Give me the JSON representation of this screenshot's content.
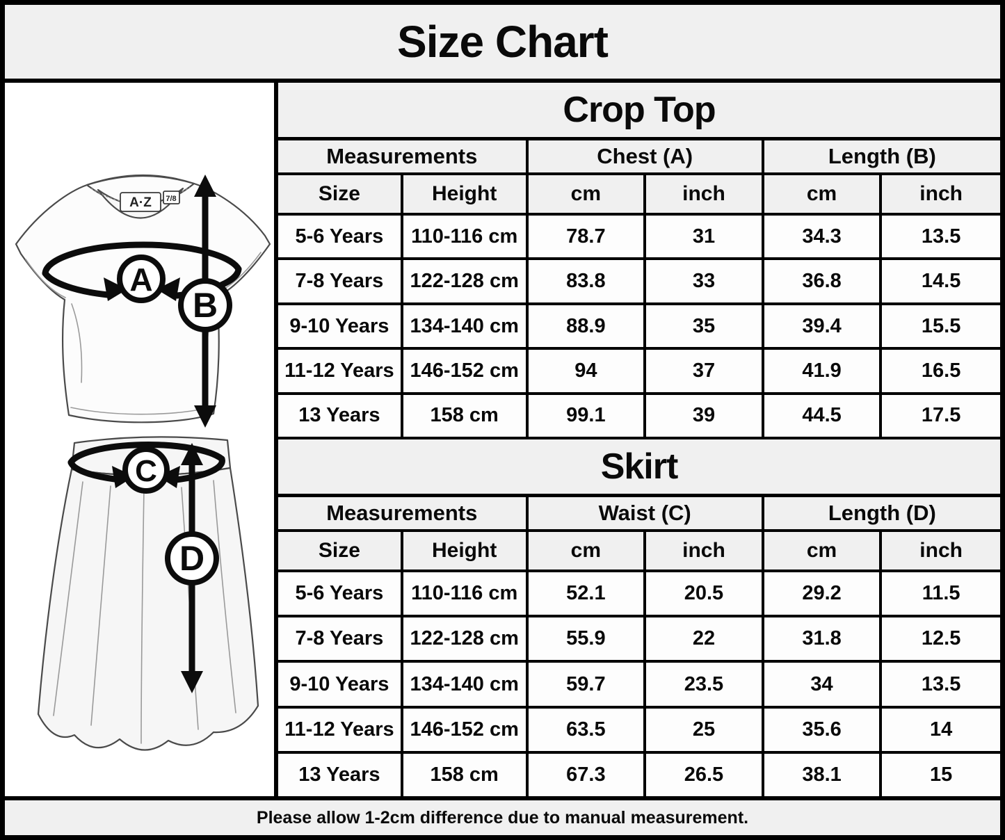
{
  "title": "Size Chart",
  "footer_note": "Please allow 1-2cm difference due to manual measurement.",
  "colors": {
    "header_bg": "#f0f0f0",
    "cell_bg": "#fdfdfd",
    "border": "#000000",
    "text": "#0a0a0a"
  },
  "illustration": {
    "chest_label": "A",
    "top_length_label": "B",
    "waist_label": "C",
    "skirt_length_label": "D",
    "brand_tag": "A·Z",
    "size_tag": "7/8"
  },
  "chart_data": [
    {
      "type": "table",
      "title": "Crop Top",
      "group_headers": [
        "Measurements",
        "Chest (A)",
        "Length (B)"
      ],
      "col_headers": [
        "Size",
        "Height",
        "cm",
        "inch",
        "cm",
        "inch"
      ],
      "rows": [
        [
          "5-6 Years",
          "110-116 cm",
          "78.7",
          "31",
          "34.3",
          "13.5"
        ],
        [
          "7-8 Years",
          "122-128 cm",
          "83.8",
          "33",
          "36.8",
          "14.5"
        ],
        [
          "9-10 Years",
          "134-140 cm",
          "88.9",
          "35",
          "39.4",
          "15.5"
        ],
        [
          "11-12 Years",
          "146-152 cm",
          "94",
          "37",
          "41.9",
          "16.5"
        ],
        [
          "13 Years",
          "158 cm",
          "99.1",
          "39",
          "44.5",
          "17.5"
        ]
      ]
    },
    {
      "type": "table",
      "title": "Skirt",
      "group_headers": [
        "Measurements",
        "Waist (C)",
        "Length (D)"
      ],
      "col_headers": [
        "Size",
        "Height",
        "cm",
        "inch",
        "cm",
        "inch"
      ],
      "rows": [
        [
          "5-6 Years",
          "110-116 cm",
          "52.1",
          "20.5",
          "29.2",
          "11.5"
        ],
        [
          "7-8 Years",
          "122-128 cm",
          "55.9",
          "22",
          "31.8",
          "12.5"
        ],
        [
          "9-10 Years",
          "134-140 cm",
          "59.7",
          "23.5",
          "34",
          "13.5"
        ],
        [
          "11-12 Years",
          "146-152 cm",
          "63.5",
          "25",
          "35.6",
          "14"
        ],
        [
          "13 Years",
          "158 cm",
          "67.3",
          "26.5",
          "38.1",
          "15"
        ]
      ]
    }
  ]
}
